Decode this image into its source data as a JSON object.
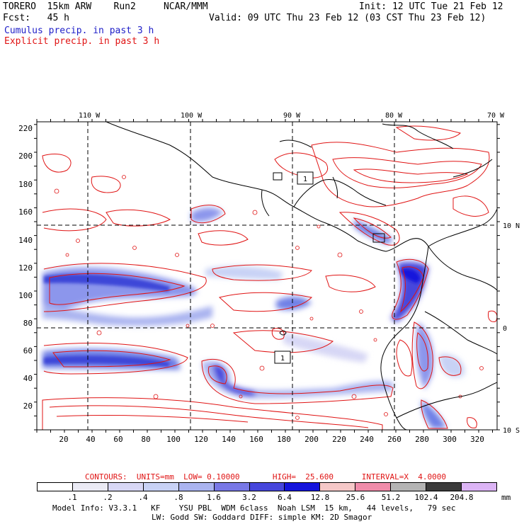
{
  "header": {
    "model_line": "TORERO  15km ARW    Run2     NCAR/MMM",
    "init_line": "Init: 12 UTC Tue 21 Feb 12",
    "fcst_line": "Fcst:   45 h",
    "valid_line": "Valid: 09 UTC Thu 23 Feb 12 (03 CST Thu 23 Feb 12)",
    "cumulus_label": "Cumulus precip. in past 3 h",
    "explicit_label": "Explicit precip. in past 3 h"
  },
  "map": {
    "top_lon_labels": [
      "110 W",
      "100 W",
      "90 W",
      "80 W",
      "70 W"
    ],
    "right_lat_labels": [
      "10 N",
      "0",
      "10 S"
    ],
    "y_ticks": [
      "220",
      "200",
      "180",
      "160",
      "140",
      "120",
      "100",
      "80",
      "60",
      "40",
      "20"
    ],
    "x_ticks": [
      "20",
      "40",
      "60",
      "80",
      "100",
      "120",
      "140",
      "160",
      "180",
      "200",
      "220",
      "240",
      "260",
      "280",
      "300",
      "320"
    ],
    "box_labels": [
      "1",
      "1"
    ]
  },
  "legend": {
    "contours_line": "CONTOURS:  UNITS=mm  LOW= 0.10000       HIGH=  25.600      INTERVAL=X  4.0000",
    "unit": "mm",
    "levels": [
      ".1",
      ".2",
      ".4",
      ".8",
      "1.6",
      "3.2",
      "6.4",
      "12.8",
      "25.6",
      "51.2",
      "102.4",
      "204.8"
    ],
    "colors": [
      "#ffffff",
      "#ebebf5",
      "#d7d7f5",
      "#c8d2f5",
      "#aab4f0",
      "#7878e6",
      "#4646dc",
      "#1414dc",
      "#f5c8c8",
      "#f08caa",
      "#b4b4b4",
      "#3c3c3c",
      "#dcb4f5"
    ]
  },
  "footer": {
    "line1": "Model Info: V3.3.1   KF    YSU PBL  WDM 6class  Noah LSM  15 km,   44 levels,   79 sec",
    "line2": "LW: Godd SW: Goddard DIFF: simple KM: 2D Smagor"
  }
}
